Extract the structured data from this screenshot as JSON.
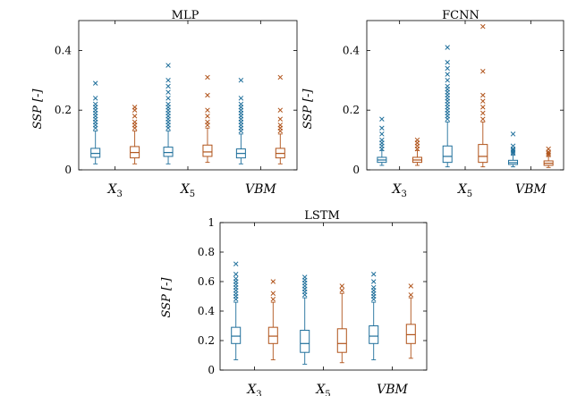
{
  "colors": {
    "series_a": "#1f6f9b",
    "series_b": "#b0531a"
  },
  "chart_data": [
    {
      "type": "box",
      "title": "MLP",
      "ylabel": "SSP [-]",
      "ylim": [
        0,
        0.5
      ],
      "yticks": [
        "0",
        "0.2",
        "0.4"
      ],
      "ytick_values": [
        0,
        0.2,
        0.4
      ],
      "categories": [
        "X3",
        "X5",
        "VBM"
      ],
      "category_labels": [
        {
          "base": "X",
          "sub": "3"
        },
        {
          "base": "X",
          "sub": "5"
        },
        {
          "base": "VBM",
          "sub": ""
        }
      ],
      "series": [
        {
          "color_key": "series_a",
          "boxes": [
            {
              "whislo": 0.02,
              "q1": 0.042,
              "med": 0.055,
              "q3": 0.072,
              "whishi": 0.13,
              "fliers": [
                0.14,
                0.15,
                0.16,
                0.17,
                0.18,
                0.19,
                0.2,
                0.21,
                0.22,
                0.24,
                0.29
              ]
            },
            {
              "whislo": 0.02,
              "q1": 0.045,
              "med": 0.058,
              "q3": 0.076,
              "whishi": 0.13,
              "fliers": [
                0.14,
                0.15,
                0.16,
                0.17,
                0.18,
                0.19,
                0.2,
                0.21,
                0.22,
                0.24,
                0.26,
                0.28,
                0.3,
                0.35
              ]
            },
            {
              "whislo": 0.02,
              "q1": 0.04,
              "med": 0.055,
              "q3": 0.07,
              "whishi": 0.12,
              "fliers": [
                0.13,
                0.14,
                0.15,
                0.16,
                0.17,
                0.18,
                0.19,
                0.2,
                0.21,
                0.22,
                0.24,
                0.3
              ]
            }
          ]
        },
        {
          "color_key": "series_b",
          "boxes": [
            {
              "whislo": 0.02,
              "q1": 0.04,
              "med": 0.058,
              "q3": 0.078,
              "whishi": 0.13,
              "fliers": [
                0.14,
                0.15,
                0.16,
                0.18,
                0.2,
                0.21
              ]
            },
            {
              "whislo": 0.025,
              "q1": 0.045,
              "med": 0.06,
              "q3": 0.083,
              "whishi": 0.14,
              "fliers": [
                0.15,
                0.16,
                0.18,
                0.2,
                0.25,
                0.31
              ]
            },
            {
              "whislo": 0.02,
              "q1": 0.04,
              "med": 0.055,
              "q3": 0.072,
              "whishi": 0.12,
              "fliers": [
                0.13,
                0.14,
                0.15,
                0.17,
                0.2,
                0.31
              ]
            }
          ]
        }
      ]
    },
    {
      "type": "box",
      "title": "FCNN",
      "ylabel": "SSP [-]",
      "ylim": [
        0,
        0.5
      ],
      "yticks": [
        "0",
        "0.2",
        "0.4"
      ],
      "ytick_values": [
        0,
        0.2,
        0.4
      ],
      "categories": [
        "X3",
        "X5",
        "VBM"
      ],
      "category_labels": [
        {
          "base": "X",
          "sub": "3"
        },
        {
          "base": "X",
          "sub": "5"
        },
        {
          "base": "VBM",
          "sub": ""
        }
      ],
      "series": [
        {
          "color_key": "series_a",
          "boxes": [
            {
              "whislo": 0.015,
              "q1": 0.025,
              "med": 0.033,
              "q3": 0.042,
              "whishi": 0.065,
              "fliers": [
                0.07,
                0.08,
                0.09,
                0.1,
                0.12,
                0.14,
                0.17
              ]
            },
            {
              "whislo": 0.01,
              "q1": 0.025,
              "med": 0.045,
              "q3": 0.08,
              "whishi": 0.16,
              "fliers": [
                0.17,
                0.18,
                0.19,
                0.2,
                0.21,
                0.22,
                0.23,
                0.24,
                0.25,
                0.26,
                0.27,
                0.28,
                0.3,
                0.32,
                0.34,
                0.36,
                0.41
              ]
            },
            {
              "whislo": 0.01,
              "q1": 0.018,
              "med": 0.024,
              "q3": 0.032,
              "whishi": 0.05,
              "fliers": [
                0.055,
                0.06,
                0.065,
                0.07,
                0.08,
                0.12
              ]
            }
          ]
        },
        {
          "color_key": "series_b",
          "boxes": [
            {
              "whislo": 0.015,
              "q1": 0.025,
              "med": 0.033,
              "q3": 0.042,
              "whishi": 0.065,
              "fliers": [
                0.07,
                0.08,
                0.09,
                0.1
              ]
            },
            {
              "whislo": 0.01,
              "q1": 0.025,
              "med": 0.045,
              "q3": 0.085,
              "whishi": 0.16,
              "fliers": [
                0.17,
                0.19,
                0.21,
                0.23,
                0.25,
                0.33,
                0.48
              ]
            },
            {
              "whislo": 0.008,
              "q1": 0.015,
              "med": 0.022,
              "q3": 0.03,
              "whishi": 0.045,
              "fliers": [
                0.05,
                0.055,
                0.06,
                0.07
              ]
            }
          ]
        }
      ]
    },
    {
      "type": "box",
      "title": "LSTM",
      "ylabel": "SSP [-]",
      "ylim": [
        0,
        1.0
      ],
      "yticks": [
        "0",
        "0.2",
        "0.4",
        "0.6",
        "0.8",
        "1"
      ],
      "ytick_values": [
        0,
        0.2,
        0.4,
        0.6,
        0.8,
        1.0
      ],
      "categories": [
        "X3",
        "X5",
        "VBM"
      ],
      "category_labels": [
        {
          "base": "X",
          "sub": "3"
        },
        {
          "base": "X",
          "sub": "5"
        },
        {
          "base": "VBM",
          "sub": ""
        }
      ],
      "series": [
        {
          "color_key": "series_a",
          "boxes": [
            {
              "whislo": 0.07,
              "q1": 0.18,
              "med": 0.23,
              "q3": 0.29,
              "whishi": 0.46,
              "fliers": [
                0.48,
                0.5,
                0.52,
                0.54,
                0.56,
                0.58,
                0.6,
                0.62,
                0.65,
                0.72
              ]
            },
            {
              "whislo": 0.04,
              "q1": 0.12,
              "med": 0.18,
              "q3": 0.27,
              "whishi": 0.49,
              "fliers": [
                0.51,
                0.53,
                0.55,
                0.57,
                0.59,
                0.61,
                0.63
              ]
            },
            {
              "whislo": 0.07,
              "q1": 0.18,
              "med": 0.23,
              "q3": 0.3,
              "whishi": 0.46,
              "fliers": [
                0.48,
                0.5,
                0.52,
                0.54,
                0.56,
                0.6,
                0.65
              ]
            }
          ]
        },
        {
          "color_key": "series_b",
          "boxes": [
            {
              "whislo": 0.07,
              "q1": 0.18,
              "med": 0.23,
              "q3": 0.29,
              "whishi": 0.46,
              "fliers": [
                0.48,
                0.52,
                0.6
              ]
            },
            {
              "whislo": 0.05,
              "q1": 0.12,
              "med": 0.18,
              "q3": 0.28,
              "whishi": 0.52,
              "fliers": [
                0.54,
                0.57
              ]
            },
            {
              "whislo": 0.08,
              "q1": 0.18,
              "med": 0.24,
              "q3": 0.31,
              "whishi": 0.49,
              "fliers": [
                0.51,
                0.57
              ]
            }
          ]
        }
      ]
    }
  ]
}
